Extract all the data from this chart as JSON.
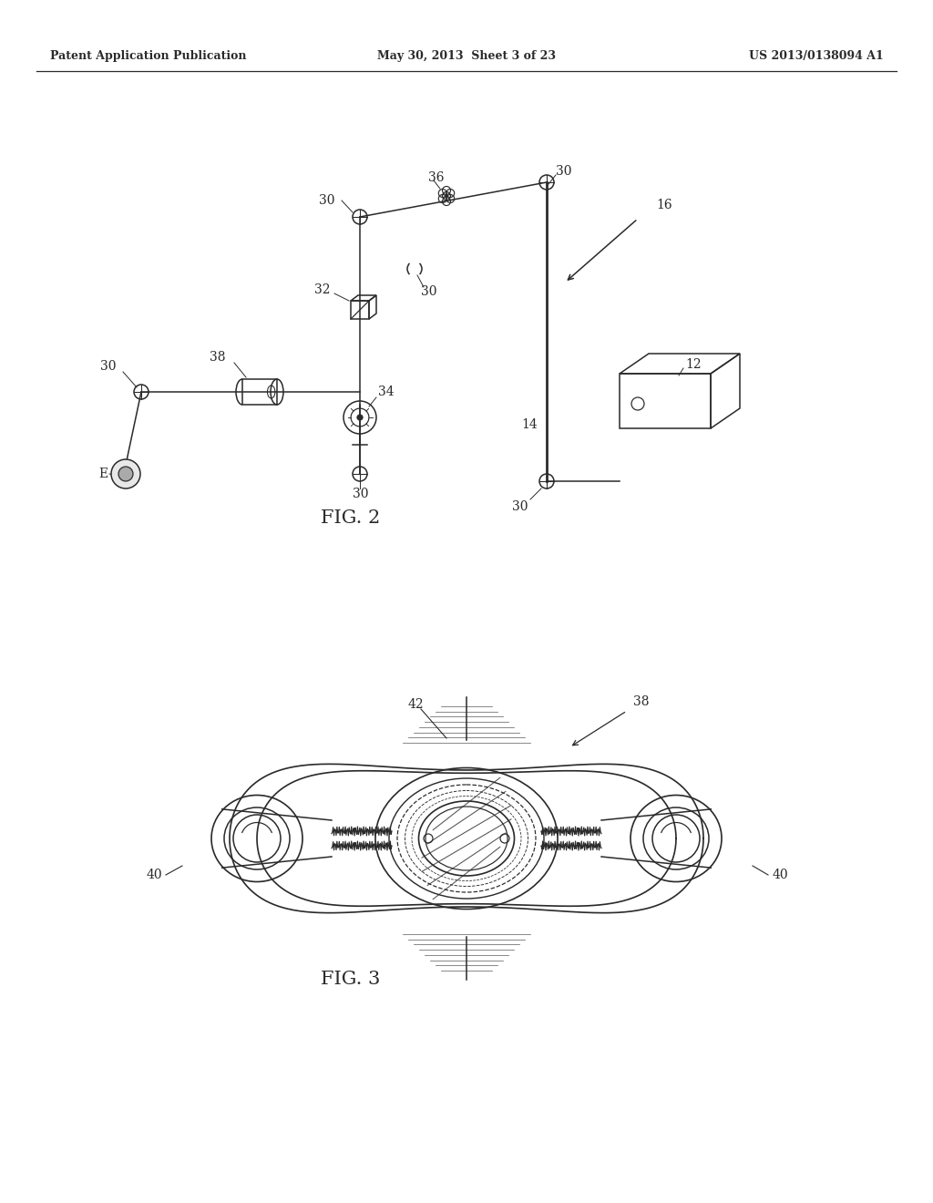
{
  "header_left": "Patent Application Publication",
  "header_mid": "May 30, 2013  Sheet 3 of 23",
  "header_right": "US 2013/0138094 A1",
  "fig2_label": "FIG. 2",
  "fig3_label": "FIG. 3",
  "bg_color": "#ffffff",
  "line_color": "#2a2a2a"
}
